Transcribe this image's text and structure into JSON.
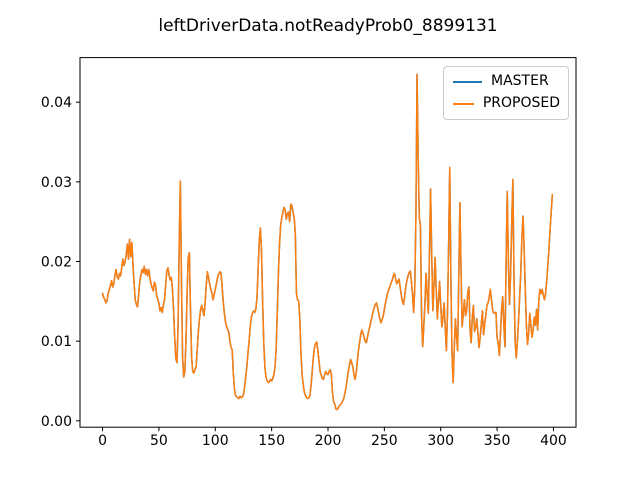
{
  "figure": {
    "background_color": "#ffffff",
    "spine_color": "#000000",
    "text_color": "#000000"
  },
  "legend": {
    "position": "upper right",
    "entries": [
      {
        "label": "MASTER",
        "color": "#1f77b4"
      },
      {
        "label": "PROPOSED",
        "color": "#ff7f0e"
      }
    ]
  },
  "chart_data": {
    "type": "line",
    "title": "leftDriverData.notReadyProb0_8899131",
    "xlabel": "",
    "ylabel": "",
    "grid": false,
    "legend_position": "upper right",
    "xlim": [
      -20,
      420
    ],
    "ylim": [
      -0.0008,
      0.0456
    ],
    "x_ticks": [
      0,
      50,
      100,
      150,
      200,
      250,
      300,
      350,
      400
    ],
    "x_tick_labels": [
      "0",
      "50",
      "100",
      "150",
      "200",
      "250",
      "300",
      "350",
      "400"
    ],
    "y_ticks": [
      0.0,
      0.01,
      0.02,
      0.03,
      0.04
    ],
    "y_tick_labels": [
      "0.00",
      "0.01",
      "0.02",
      "0.03",
      "0.04"
    ],
    "x_start": 0,
    "x_step": 1,
    "note": "Two series plotted; MASTER is completely overlapped by the identical PROPOSED series, so only the orange line is visible.",
    "series": [
      {
        "name": "MASTER",
        "color": "#1f77b4",
        "linewidth": 1.5,
        "values_ref": "shared_values"
      },
      {
        "name": "PROPOSED",
        "color": "#ff7f0e",
        "linewidth": 1.5,
        "values_ref": "shared_values"
      }
    ],
    "shared_values": [
      0.016,
      0.0155,
      0.0152,
      0.0148,
      0.0151,
      0.016,
      0.0165,
      0.017,
      0.0176,
      0.0168,
      0.0172,
      0.0183,
      0.019,
      0.0181,
      0.0178,
      0.0185,
      0.0182,
      0.0192,
      0.0203,
      0.0195,
      0.02,
      0.0208,
      0.0222,
      0.0203,
      0.0228,
      0.0206,
      0.0224,
      0.0196,
      0.0172,
      0.0152,
      0.0146,
      0.0143,
      0.0158,
      0.0175,
      0.0183,
      0.019,
      0.0186,
      0.0194,
      0.0184,
      0.019,
      0.0182,
      0.019,
      0.018,
      0.0172,
      0.0167,
      0.0163,
      0.0174,
      0.017,
      0.0158,
      0.0152,
      0.0148,
      0.0138,
      0.0142,
      0.0136,
      0.0146,
      0.0152,
      0.017,
      0.0188,
      0.0192,
      0.0183,
      0.0177,
      0.018,
      0.0165,
      0.014,
      0.0105,
      0.0078,
      0.0073,
      0.012,
      0.022,
      0.0301,
      0.018,
      0.008,
      0.0055,
      0.0062,
      0.01,
      0.016,
      0.0205,
      0.0211,
      0.014,
      0.008,
      0.0062,
      0.006,
      0.0064,
      0.0068,
      0.009,
      0.0112,
      0.0128,
      0.014,
      0.0145,
      0.0138,
      0.0132,
      0.0148,
      0.017,
      0.0187,
      0.018,
      0.0172,
      0.0165,
      0.0161,
      0.0152,
      0.0158,
      0.0165,
      0.0172,
      0.018,
      0.0184,
      0.0187,
      0.0186,
      0.017,
      0.015,
      0.0136,
      0.0125,
      0.0118,
      0.0115,
      0.0111,
      0.01,
      0.0092,
      0.0089,
      0.006,
      0.004,
      0.0032,
      0.003,
      0.0029,
      0.0028,
      0.0031,
      0.0029,
      0.003,
      0.0033,
      0.0042,
      0.0055,
      0.0068,
      0.0085,
      0.01,
      0.0118,
      0.013,
      0.0135,
      0.0138,
      0.0136,
      0.014,
      0.0155,
      0.019,
      0.0225,
      0.0242,
      0.0215,
      0.015,
      0.0098,
      0.0068,
      0.0055,
      0.005,
      0.0048,
      0.0049,
      0.0052,
      0.005,
      0.0053,
      0.0058,
      0.0068,
      0.009,
      0.0135,
      0.0185,
      0.0222,
      0.0245,
      0.0255,
      0.0262,
      0.0268,
      0.0265,
      0.0253,
      0.026,
      0.0262,
      0.025,
      0.0272,
      0.027,
      0.0262,
      0.0255,
      0.0235,
      0.016,
      0.0152,
      0.015,
      0.0128,
      0.0085,
      0.0058,
      0.0046,
      0.0036,
      0.0032,
      0.0029,
      0.0028,
      0.0029,
      0.0032,
      0.0045,
      0.0062,
      0.008,
      0.0092,
      0.0097,
      0.0099,
      0.0088,
      0.0075,
      0.0062,
      0.0057,
      0.0053,
      0.0052,
      0.0058,
      0.0062,
      0.0059,
      0.0058,
      0.0062,
      0.0064,
      0.0058,
      0.0035,
      0.0024,
      0.0021,
      0.0015,
      0.0014,
      0.0016,
      0.0019,
      0.002,
      0.0022,
      0.0025,
      0.0028,
      0.0035,
      0.0042,
      0.0052,
      0.0062,
      0.007,
      0.0077,
      0.0073,
      0.0068,
      0.0058,
      0.0052,
      0.006,
      0.0075,
      0.0088,
      0.0098,
      0.0108,
      0.0114,
      0.011,
      0.0105,
      0.01,
      0.0098,
      0.0105,
      0.0112,
      0.0118,
      0.0125,
      0.013,
      0.0137,
      0.0142,
      0.0146,
      0.0148,
      0.0142,
      0.0135,
      0.0128,
      0.0123,
      0.0127,
      0.0132,
      0.014,
      0.0148,
      0.0155,
      0.0161,
      0.0165,
      0.0169,
      0.0173,
      0.0177,
      0.0182,
      0.0185,
      0.0178,
      0.0172,
      0.0175,
      0.0178,
      0.0168,
      0.0158,
      0.015,
      0.0146,
      0.0156,
      0.0168,
      0.0176,
      0.0182,
      0.0186,
      0.0188,
      0.0175,
      0.0158,
      0.0136,
      0.0168,
      0.026,
      0.0435,
      0.033,
      0.0255,
      0.0245,
      0.0132,
      0.0093,
      0.012,
      0.0148,
      0.0185,
      0.016,
      0.0135,
      0.021,
      0.0291,
      0.021,
      0.0138,
      0.017,
      0.0205,
      0.0165,
      0.0128,
      0.015,
      0.0175,
      0.0145,
      0.0118,
      0.013,
      0.0148,
      0.0118,
      0.0088,
      0.0135,
      0.022,
      0.0318,
      0.018,
      0.0085,
      0.0048,
      0.009,
      0.0128,
      0.0106,
      0.0088,
      0.018,
      0.0274,
      0.019,
      0.0118,
      0.0135,
      0.0152,
      0.0132,
      0.0138,
      0.0162,
      0.0168,
      0.0115,
      0.0098,
      0.013,
      0.0145,
      0.0112,
      0.0118,
      0.0128,
      0.011,
      0.0092,
      0.0105,
      0.0122,
      0.0138,
      0.0108,
      0.0122,
      0.0132,
      0.0145,
      0.0148,
      0.0155,
      0.0165,
      0.0152,
      0.014,
      0.0135,
      0.0136,
      0.0136,
      0.0104,
      0.0098,
      0.0082,
      0.011,
      0.014,
      0.0156,
      0.012,
      0.0093,
      0.02,
      0.0288,
      0.02,
      0.0146,
      0.0185,
      0.025,
      0.0303,
      0.018,
      0.01,
      0.0079,
      0.01,
      0.0125,
      0.0155,
      0.0185,
      0.023,
      0.0257,
      0.0215,
      0.0165,
      0.012,
      0.0096,
      0.011,
      0.0135,
      0.012,
      0.0105,
      0.0115,
      0.013,
      0.012,
      0.014,
      0.0114,
      0.015,
      0.0165,
      0.016,
      0.0165,
      0.0158,
      0.0152,
      0.016,
      0.0175,
      0.0195,
      0.0215,
      0.024,
      0.0262,
      0.0284
    ]
  }
}
